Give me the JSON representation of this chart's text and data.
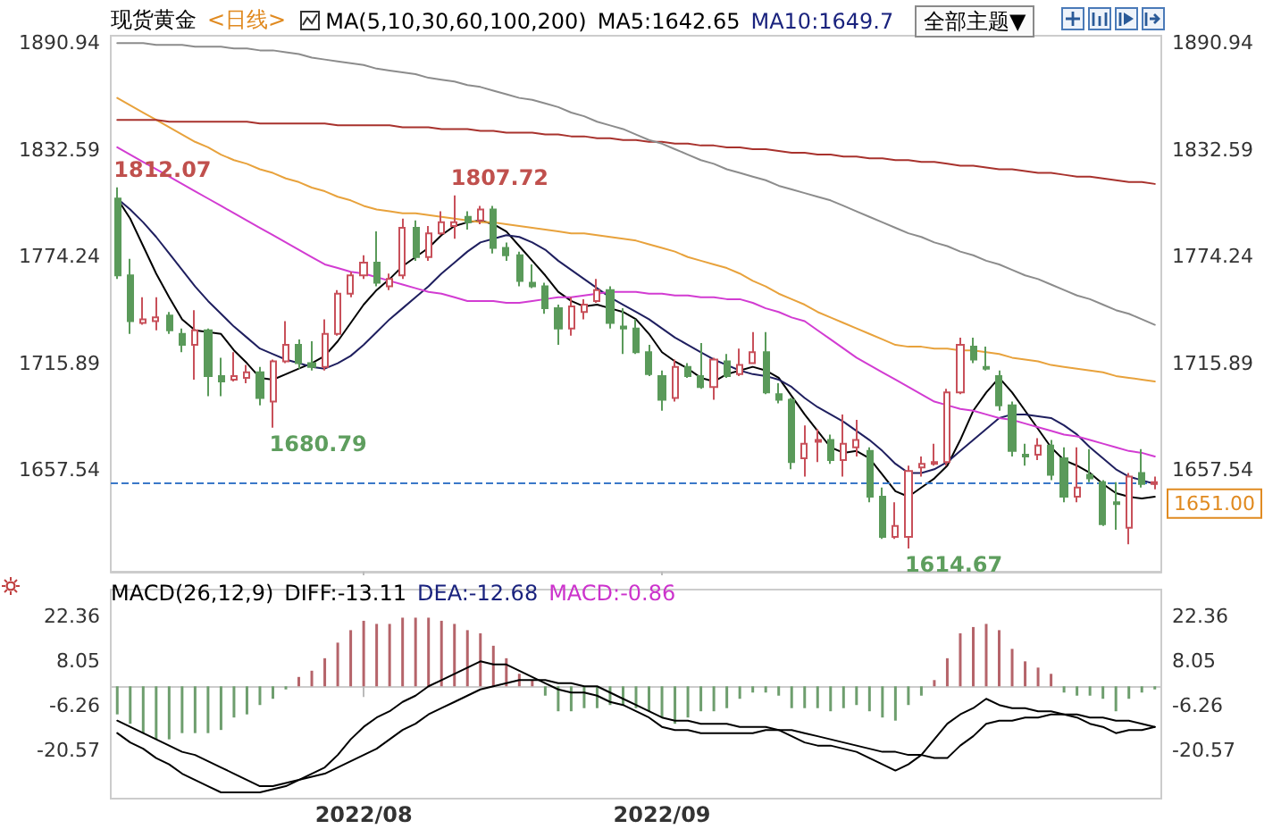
{
  "chart_data": [
    {
      "type": "candlestick",
      "title": "现货黄金",
      "subtitle": "<日线>",
      "annotations": [
        "MA(5,10,30,60,100,200)",
        "MA5:1642.65",
        "MA10:1649.7",
        "全部主题▼",
        "1812.07",
        "1807.72",
        "1680.79",
        "1614.67"
      ],
      "categories": [
        null,
        null,
        null,
        null,
        null,
        null,
        null,
        null,
        null,
        null,
        null,
        null,
        null,
        null,
        null,
        null,
        null,
        null,
        null,
        "2022/08",
        null,
        null,
        null,
        null,
        null,
        null,
        null,
        null,
        null,
        null,
        null,
        null,
        null,
        null,
        null,
        null,
        null,
        null,
        null,
        null,
        null,
        null,
        "2022/09",
        null,
        null,
        null,
        null,
        null,
        null,
        null,
        null,
        null,
        null,
        null,
        null,
        null,
        null,
        null,
        null,
        null,
        null,
        null,
        null,
        null,
        null,
        null,
        null,
        null,
        null,
        null,
        null,
        null,
        null,
        null,
        null,
        null,
        null,
        null,
        null,
        null,
        null
      ],
      "series": [
        {
          "ohlc": [
            [
              1806,
              1812.07,
              1762,
              1764
            ],
            [
              1764,
              1773,
              1732,
              1739
            ],
            [
              1738,
              1752,
              1737,
              1740
            ],
            [
              1739,
              1752,
              1734,
              1741
            ],
            [
              1742,
              1744,
              1732,
              1734
            ],
            [
              1732,
              1735,
              1722,
              1726
            ],
            [
              1726,
              1745,
              1707,
              1734
            ],
            [
              1734,
              1735,
              1698,
              1709
            ],
            [
              1709,
              1719,
              1698,
              1706
            ],
            [
              1707,
              1722,
              1706,
              1709
            ],
            [
              1708,
              1715,
              1705,
              1711
            ],
            [
              1711,
              1714,
              1693,
              1697
            ],
            [
              1695,
              1718,
              1680.79,
              1717
            ],
            [
              1717,
              1739,
              1716,
              1726
            ],
            [
              1726,
              1729,
              1713,
              1716
            ],
            [
              1716,
              1728,
              1712,
              1714
            ],
            [
              1714,
              1740,
              1712,
              1732
            ],
            [
              1732,
              1756,
              1731,
              1754
            ],
            [
              1754,
              1766,
              1752,
              1764
            ],
            [
              1764,
              1775,
              1762,
              1771
            ],
            [
              1771,
              1788,
              1758,
              1760
            ],
            [
              1758,
              1765,
              1756,
              1762
            ],
            [
              1764,
              1795,
              1762,
              1790
            ],
            [
              1790,
              1794,
              1772,
              1774
            ],
            [
              1774,
              1791,
              1772,
              1787
            ],
            [
              1787,
              1799,
              1786,
              1793
            ],
            [
              1791,
              1807.72,
              1784,
              1793
            ],
            [
              1796,
              1799,
              1789,
              1793
            ],
            [
              1794,
              1802,
              1792,
              1800
            ],
            [
              1800,
              1802,
              1776,
              1779
            ],
            [
              1779,
              1782,
              1772,
              1775
            ],
            [
              1775,
              1777,
              1758,
              1761
            ],
            [
              1760,
              1770,
              1757,
              1758
            ],
            [
              1758,
              1760,
              1743,
              1746
            ],
            [
              1746,
              1748,
              1726,
              1735
            ],
            [
              1735,
              1752,
              1731,
              1747
            ],
            [
              1744,
              1751,
              1740,
              1748
            ],
            [
              1750,
              1762,
              1749,
              1756
            ],
            [
              1756,
              1758,
              1735,
              1738
            ],
            [
              1736,
              1746,
              1721,
              1735
            ],
            [
              1735,
              1740,
              1721,
              1722
            ],
            [
              1722,
              1726,
              1709,
              1710
            ],
            [
              1709,
              1712,
              1690,
              1696
            ],
            [
              1697,
              1718,
              1695,
              1714
            ],
            [
              1714,
              1716,
              1708,
              1709
            ],
            [
              1709,
              1727,
              1702,
              1703
            ],
            [
              1703,
              1719,
              1696,
              1718
            ],
            [
              1717,
              1721,
              1708,
              1709
            ],
            [
              1710,
              1724,
              1709,
              1715
            ],
            [
              1716,
              1733,
              1716,
              1722
            ],
            [
              1722,
              1733,
              1699,
              1700
            ],
            [
              1699,
              1705,
              1694,
              1696
            ],
            [
              1696,
              1697,
              1658,
              1662
            ],
            [
              1664,
              1682,
              1654,
              1672
            ],
            [
              1673,
              1680,
              1662,
              1674
            ],
            [
              1674,
              1677,
              1661,
              1663
            ],
            [
              1663,
              1688,
              1654,
              1672
            ],
            [
              1670,
              1685,
              1665,
              1674
            ],
            [
              1668,
              1670,
              1640,
              1643
            ],
            [
              1643,
              1648,
              1620,
              1621
            ],
            [
              1621,
              1640,
              1620,
              1627
            ],
            [
              1621,
              1660,
              1614.67,
              1657
            ],
            [
              1659,
              1665,
              1654,
              1661
            ],
            [
              1661,
              1672,
              1660,
              1662
            ],
            [
              1662,
              1702,
              1660,
              1700
            ],
            [
              1700,
              1730,
              1699,
              1726
            ],
            [
              1725,
              1730,
              1716,
              1718
            ],
            [
              1714,
              1725,
              1712,
              1713
            ],
            [
              1709,
              1712,
              1690,
              1693
            ],
            [
              1693,
              1695,
              1665,
              1668
            ],
            [
              1666,
              1672,
              1660,
              1665
            ],
            [
              1666,
              1675,
              1663,
              1671
            ],
            [
              1671,
              1674,
              1652,
              1655
            ],
            [
              1664,
              1670,
              1640,
              1643
            ],
            [
              1643,
              1670,
              1640,
              1648
            ],
            [
              1655,
              1669,
              1651,
              1653
            ],
            [
              1651,
              1652,
              1627,
              1628
            ],
            [
              1640,
              1651,
              1625,
              1639
            ],
            [
              1626,
              1656,
              1617,
              1654
            ],
            [
              1656,
              1669,
              1648,
              1650
            ],
            [
              1650,
              1654,
              1647,
              1651
            ]
          ],
          "colors": [
            "#5a9a5a",
            "#5a9a5a",
            "#c8505a",
            "#c8505a",
            "#5a9a5a",
            "#5a9a5a",
            "#c8505a",
            "#5a9a5a",
            "#5a9a5a",
            "#c8505a",
            "#c8505a",
            "#5a9a5a",
            "#c8505a",
            "#c8505a",
            "#5a9a5a",
            "#5a9a5a",
            "#c8505a",
            "#c8505a",
            "#c8505a",
            "#c8505a",
            "#5a9a5a",
            "#c8505a",
            "#c8505a",
            "#5a9a5a",
            "#c8505a",
            "#c8505a",
            "#c8505a",
            "#5a9a5a",
            "#c8505a",
            "#5a9a5a",
            "#5a9a5a",
            "#5a9a5a",
            "#5a9a5a",
            "#5a9a5a",
            "#5a9a5a",
            "#c8505a",
            "#c8505a",
            "#c8505a",
            "#5a9a5a",
            "#5a9a5a",
            "#5a9a5a",
            "#5a9a5a",
            "#5a9a5a",
            "#c8505a",
            "#5a9a5a",
            "#5a9a5a",
            "#c8505a",
            "#5a9a5a",
            "#c8505a",
            "#c8505a",
            "#5a9a5a",
            "#5a9a5a",
            "#5a9a5a",
            "#c8505a",
            "#c8505a",
            "#5a9a5a",
            "#c8505a",
            "#c8505a",
            "#5a9a5a",
            "#5a9a5a",
            "#c8505a",
            "#c8505a",
            "#c8505a",
            "#c8505a",
            "#c8505a",
            "#c8505a",
            "#5a9a5a",
            "#5a9a5a",
            "#5a9a5a",
            "#5a9a5a",
            "#5a9a5a",
            "#c8505a",
            "#5a9a5a",
            "#5a9a5a",
            "#c8505a",
            "#5a9a5a",
            "#5a9a5a",
            "#5a9a5a",
            "#c8505a",
            "#5a9a5a",
            "#c8505a"
          ]
        },
        {
          "type": "line",
          "color": "#000000",
          "values": [
            1806,
            1795,
            1780,
            1765,
            1752,
            1740,
            1734,
            1733,
            1732,
            1723,
            1716,
            1708,
            1707,
            1710,
            1713,
            1716,
            1720,
            1728,
            1738,
            1748,
            1756,
            1762,
            1769,
            1774,
            1779,
            1786,
            1791,
            1793,
            1794,
            1792,
            1788,
            1780,
            1772,
            1764,
            1755,
            1750,
            1747,
            1748,
            1746,
            1744,
            1740,
            1732,
            1722,
            1717,
            1713,
            1708,
            1706,
            1710,
            1712,
            1714,
            1712,
            1708,
            1698,
            1688,
            1679,
            1670,
            1667,
            1668,
            1664,
            1655,
            1646,
            1643,
            1648,
            1653,
            1660,
            1674,
            1690,
            1700,
            1708,
            1700,
            1690,
            1680,
            1670,
            1663,
            1660,
            1656,
            1650,
            1645,
            1643,
            1642,
            1643
          ]
        },
        {
          "type": "line",
          "color": "#1f1f5f",
          "values": [
            1806,
            1800,
            1793,
            1785,
            1776,
            1767,
            1758,
            1750,
            1743,
            1736,
            1730,
            1724,
            1721,
            1718,
            1716,
            1714,
            1713,
            1716,
            1720,
            1726,
            1733,
            1740,
            1746,
            1752,
            1758,
            1765,
            1771,
            1777,
            1782,
            1784,
            1786,
            1785,
            1782,
            1778,
            1772,
            1767,
            1762,
            1757,
            1752,
            1748,
            1744,
            1740,
            1735,
            1730,
            1726,
            1722,
            1718,
            1715,
            1712,
            1710,
            1709,
            1707,
            1703,
            1697,
            1692,
            1688,
            1684,
            1679,
            1674,
            1668,
            1661,
            1656,
            1656,
            1658,
            1662,
            1668,
            1674,
            1680,
            1686,
            1688,
            1688,
            1687,
            1686,
            1682,
            1677,
            1670,
            1664,
            1658,
            1654,
            1652,
            1650
          ]
        },
        {
          "type": "line",
          "color": "#d23cd2",
          "values": [
            1834,
            1830,
            1826,
            1822,
            1818,
            1814,
            1810,
            1806,
            1802,
            1798,
            1794,
            1790,
            1786,
            1782,
            1778,
            1774,
            1770,
            1768,
            1766,
            1765,
            1763,
            1761,
            1759,
            1757,
            1755,
            1754,
            1752,
            1750,
            1750,
            1750,
            1749,
            1749,
            1750,
            1751,
            1752,
            1752,
            1753,
            1754,
            1755,
            1755,
            1755,
            1754,
            1754,
            1753,
            1753,
            1752,
            1752,
            1751,
            1751,
            1749,
            1746,
            1744,
            1741,
            1739,
            1734,
            1729,
            1724,
            1719,
            1715,
            1711,
            1707,
            1703,
            1699,
            1695,
            1693,
            1691,
            1690,
            1688,
            1686,
            1685,
            1683,
            1681,
            1679,
            1677,
            1676,
            1674,
            1672,
            1670,
            1668,
            1667,
            1665
          ]
        },
        {
          "type": "line",
          "color": "#e8a23c",
          "values": [
            1861,
            1857,
            1853,
            1849,
            1845,
            1841,
            1837,
            1834,
            1830,
            1827,
            1825,
            1822,
            1820,
            1817,
            1815,
            1812,
            1810,
            1807,
            1805,
            1802,
            1800,
            1799,
            1798,
            1798,
            1797,
            1796,
            1795,
            1794,
            1793,
            1793,
            1792,
            1791,
            1790,
            1789,
            1788,
            1787,
            1787,
            1786,
            1785,
            1784,
            1783,
            1781,
            1779,
            1777,
            1774,
            1772,
            1770,
            1768,
            1765,
            1761,
            1758,
            1754,
            1751,
            1748,
            1744,
            1741,
            1738,
            1735,
            1732,
            1729,
            1726,
            1725,
            1725,
            1724,
            1724,
            1723,
            1723,
            1722,
            1721,
            1719,
            1718,
            1717,
            1715,
            1714,
            1713,
            1712,
            1711,
            1709,
            1708,
            1707,
            1706
          ]
        },
        {
          "type": "line",
          "color": "#a8322d",
          "values": [
            1849,
            1849,
            1849,
            1849,
            1848,
            1848,
            1848,
            1848,
            1848,
            1848,
            1848,
            1847,
            1847,
            1847,
            1847,
            1847,
            1847,
            1846,
            1846,
            1846,
            1846,
            1846,
            1845,
            1845,
            1845,
            1844,
            1844,
            1844,
            1843,
            1843,
            1842,
            1842,
            1842,
            1841,
            1841,
            1840,
            1840,
            1839,
            1839,
            1838,
            1838,
            1837,
            1837,
            1836,
            1836,
            1835,
            1835,
            1834,
            1834,
            1833,
            1833,
            1832,
            1831,
            1831,
            1830,
            1830,
            1829,
            1829,
            1828,
            1828,
            1827,
            1827,
            1826,
            1826,
            1825,
            1824,
            1824,
            1823,
            1822,
            1822,
            1821,
            1820,
            1820,
            1819,
            1818,
            1818,
            1817,
            1816,
            1815,
            1815,
            1814
          ]
        },
        {
          "type": "line",
          "color": "#8c8c8c",
          "values": [
            1891,
            1891,
            1891,
            1890,
            1890,
            1890,
            1889,
            1889,
            1889,
            1888,
            1888,
            1887,
            1887,
            1886,
            1885,
            1883,
            1882,
            1881,
            1880,
            1879,
            1877,
            1876,
            1875,
            1874,
            1872,
            1871,
            1870,
            1868,
            1867,
            1865,
            1863,
            1861,
            1860,
            1858,
            1856,
            1853,
            1851,
            1848,
            1846,
            1844,
            1841,
            1838,
            1836,
            1833,
            1830,
            1827,
            1825,
            1822,
            1820,
            1818,
            1816,
            1813,
            1811,
            1809,
            1807,
            1805,
            1802,
            1799,
            1796,
            1793,
            1790,
            1787,
            1785,
            1782,
            1780,
            1777,
            1775,
            1772,
            1770,
            1767,
            1764,
            1762,
            1759,
            1756,
            1753,
            1751,
            1748,
            1745,
            1743,
            1740,
            1737
          ]
        }
      ],
      "ylim": [
        1602,
        1895
      ],
      "yticks": [
        1657.54,
        1715.89,
        1774.24,
        1832.59,
        1890.94
      ],
      "y2lim": [
        1602,
        1895
      ],
      "y2ticks": [
        1657.54,
        1715.89,
        1774.24,
        1832.59,
        1890.94
      ],
      "ref_lines": [
        {
          "axis": "y",
          "value": 1651,
          "label": "1651.00",
          "color": "#3a78c8",
          "line_style": "dashed"
        }
      ],
      "tick_labels": "y",
      "grid": false
    },
    {
      "type": "bar",
      "title": "MACD(26,12,9)",
      "annotations": [
        "DIFF:-13.11",
        "DEA:-12.68",
        "MACD:-0.86"
      ],
      "categories": [
        null,
        null,
        null,
        null,
        null,
        null,
        null,
        null,
        null,
        null,
        null,
        null,
        null,
        null,
        null,
        null,
        null,
        null,
        null,
        "2022/08",
        null,
        null,
        null,
        null,
        null,
        null,
        null,
        null,
        null,
        null,
        null,
        null,
        null,
        null,
        null,
        null,
        null,
        null,
        null,
        null,
        null,
        null,
        "2022/09",
        null,
        null,
        null,
        null,
        null,
        null,
        null,
        null,
        null,
        null,
        null,
        null,
        null,
        null,
        null,
        null,
        null,
        null,
        null,
        null,
        null,
        null,
        null,
        null,
        null,
        null,
        null,
        null,
        null,
        null,
        null,
        null,
        null,
        null,
        null,
        null,
        null,
        null
      ],
      "series": [
        {
          "values": [
            -9,
            -12,
            -15,
            -17,
            -17,
            -15,
            -15,
            -15,
            -14,
            -10,
            -9,
            -6,
            -4,
            -1,
            3,
            5,
            9,
            14,
            18,
            21,
            20,
            20,
            22,
            22,
            22,
            21,
            20,
            18,
            17,
            13,
            9,
            4,
            2,
            -3,
            -8,
            -8,
            -7,
            -7,
            -6,
            -6,
            -7,
            -8,
            -10,
            -12,
            -10,
            -8,
            -8,
            -7,
            -4,
            -2,
            -2,
            -3,
            -7,
            -7,
            -7,
            -8,
            -7,
            -6,
            -8,
            -10,
            -11,
            -6,
            -3,
            2,
            9,
            17,
            19,
            20,
            18,
            12,
            8,
            6,
            4,
            -2,
            -3,
            -3,
            -4,
            -8,
            -4,
            -2,
            -1
          ],
          "colors": [
            "#6e9e6e",
            "#6e9e6e",
            "#6e9e6e",
            "#6e9e6e",
            "#6e9e6e",
            "#6e9e6e",
            "#6e9e6e",
            "#6e9e6e",
            "#6e9e6e",
            "#6e9e6e",
            "#6e9e6e",
            "#6e9e6e",
            "#6e9e6e",
            "#6e9e6e",
            "#b5646a",
            "#b5646a",
            "#b5646a",
            "#b5646a",
            "#b5646a",
            "#b5646a",
            "#b5646a",
            "#b5646a",
            "#b5646a",
            "#b5646a",
            "#b5646a",
            "#b5646a",
            "#b5646a",
            "#b5646a",
            "#b5646a",
            "#b5646a",
            "#b5646a",
            "#b5646a",
            "#b5646a",
            "#6e9e6e",
            "#6e9e6e",
            "#6e9e6e",
            "#6e9e6e",
            "#6e9e6e",
            "#6e9e6e",
            "#6e9e6e",
            "#6e9e6e",
            "#6e9e6e",
            "#6e9e6e",
            "#6e9e6e",
            "#6e9e6e",
            "#6e9e6e",
            "#6e9e6e",
            "#6e9e6e",
            "#6e9e6e",
            "#6e9e6e",
            "#6e9e6e",
            "#6e9e6e",
            "#6e9e6e",
            "#6e9e6e",
            "#6e9e6e",
            "#6e9e6e",
            "#6e9e6e",
            "#6e9e6e",
            "#6e9e6e",
            "#6e9e6e",
            "#6e9e6e",
            "#6e9e6e",
            "#6e9e6e",
            "#b5646a",
            "#b5646a",
            "#b5646a",
            "#b5646a",
            "#b5646a",
            "#b5646a",
            "#b5646a",
            "#b5646a",
            "#b5646a",
            "#b5646a",
            "#6e9e6e",
            "#6e9e6e",
            "#6e9e6e",
            "#6e9e6e",
            "#6e9e6e",
            "#6e9e6e",
            "#6e9e6e",
            "#6e9e6e"
          ]
        },
        {
          "type": "line",
          "color": "#000000",
          "values": [
            -15,
            -18,
            -20,
            -23,
            -25,
            -28,
            -30,
            -32,
            -34,
            -34,
            -34,
            -34,
            -33,
            -32,
            -30,
            -28,
            -26,
            -22,
            -17,
            -13,
            -10,
            -8,
            -5,
            -3,
            0,
            2,
            4,
            6,
            8,
            7,
            7,
            5,
            3,
            1,
            -1,
            -2,
            -2,
            -3,
            -5,
            -6,
            -8,
            -10,
            -13,
            -14,
            -14,
            -15,
            -15,
            -15,
            -15,
            -15,
            -14,
            -14,
            -16,
            -18,
            -19,
            -19,
            -20,
            -21,
            -23,
            -25,
            -27,
            -25,
            -22,
            -17,
            -12,
            -9,
            -7,
            -4,
            -6,
            -7,
            -7,
            -8,
            -8,
            -9,
            -10,
            -12,
            -13,
            -15,
            -14,
            -14,
            -13
          ]
        },
        {
          "type": "line",
          "color": "#000000",
          "values": [
            -11,
            -13,
            -15,
            -17,
            -19,
            -21,
            -22,
            -24,
            -26,
            -28,
            -30,
            -32,
            -32,
            -31,
            -30,
            -29,
            -28,
            -26,
            -24,
            -22,
            -20,
            -17,
            -14,
            -12,
            -9,
            -7,
            -5,
            -3,
            -1,
            0,
            1,
            2,
            2,
            2,
            1,
            1,
            0,
            0,
            -2,
            -4,
            -6,
            -8,
            -10,
            -11,
            -11,
            -12,
            -12,
            -12,
            -13,
            -13,
            -13,
            -14,
            -14,
            -15,
            -16,
            -17,
            -18,
            -19,
            -20,
            -21,
            -21,
            -22,
            -22,
            -23,
            -23,
            -19,
            -16,
            -12,
            -11,
            -11,
            -10,
            -10,
            -9,
            -9,
            -9,
            -10,
            -10,
            -11,
            -11,
            -12,
            -13
          ]
        }
      ],
      "ylim": [
        -36,
        31
      ],
      "yticks": [
        22.36,
        8.05,
        -6.26,
        -20.57
      ],
      "y2lim": [
        -36,
        31
      ],
      "y2ticks": [
        22.36,
        8.05,
        -6.26,
        -20.57
      ],
      "grid": false
    }
  ]
}
